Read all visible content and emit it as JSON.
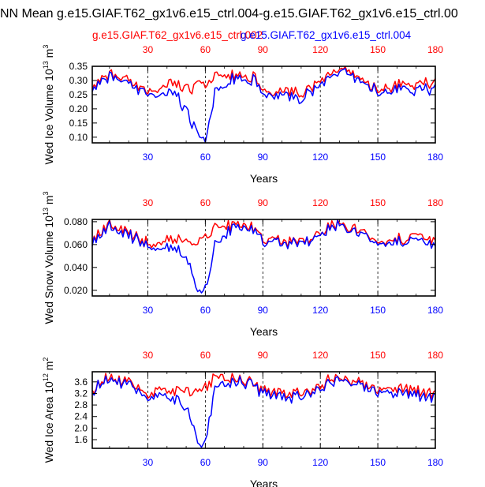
{
  "title": "NN Mean g.e15.GIAF.T62_gx1v6.e15_ctrl.004-g.e15.GIAF.T62_gx1v6.e15_ctrl.00",
  "legend": {
    "series_a": "g.e15.GIAF.T62_gx1v6.e15_ctrl.002",
    "series_b": "g.e15.GIAF.T62_gx1v6.e15_ctrl.004"
  },
  "colors": {
    "series_a": "#ff0000",
    "series_b": "#0000ff",
    "axis": "#000000",
    "grid": "#000000"
  },
  "chart_data": [
    {
      "type": "line",
      "ylabel": "Wed Ice Volume",
      "ylabel_exp": "13",
      "ylabel_unit": "m",
      "ylabel_unit_exp": "3",
      "xlabel": "Years",
      "xlim": [
        1,
        180
      ],
      "ylim": [
        0.08,
        0.35
      ],
      "yticks": [
        "0.10",
        "0.15",
        "0.20",
        "0.25",
        "0.30",
        "0.35"
      ],
      "ytick_values": [
        0.1,
        0.15,
        0.2,
        0.25,
        0.3,
        0.35
      ],
      "xticks_bottom": [
        "30",
        "60",
        "90",
        "120",
        "150",
        "180"
      ],
      "xticks_top": [
        "30",
        "60",
        "90",
        "120",
        "150",
        "180"
      ],
      "vgrid_at": [
        30,
        60,
        90,
        120,
        150
      ],
      "key_points": [
        {
          "x": 1,
          "a": 0.275,
          "b": 0.27
        },
        {
          "x": 10,
          "a": 0.325,
          "b": 0.315
        },
        {
          "x": 30,
          "a": 0.26,
          "b": 0.25
        },
        {
          "x": 45,
          "a": 0.29,
          "b": 0.25
        },
        {
          "x": 52,
          "a": 0.27,
          "b": 0.17
        },
        {
          "x": 57,
          "a": 0.28,
          "b": 0.085
        },
        {
          "x": 60,
          "a": 0.29,
          "b": 0.095
        },
        {
          "x": 65,
          "a": 0.32,
          "b": 0.26
        },
        {
          "x": 75,
          "a": 0.32,
          "b": 0.31
        },
        {
          "x": 85,
          "a": 0.31,
          "b": 0.3
        },
        {
          "x": 90,
          "a": 0.27,
          "b": 0.26
        },
        {
          "x": 110,
          "a": 0.26,
          "b": 0.24
        },
        {
          "x": 130,
          "a": 0.34,
          "b": 0.33
        },
        {
          "x": 150,
          "a": 0.27,
          "b": 0.26
        },
        {
          "x": 165,
          "a": 0.29,
          "b": 0.27
        },
        {
          "x": 180,
          "a": 0.29,
          "b": 0.27
        }
      ]
    },
    {
      "type": "line",
      "ylabel": "Wed Snow Volume",
      "ylabel_exp": "13",
      "ylabel_unit": "m",
      "ylabel_unit_exp": "3",
      "xlabel": "Years",
      "xlim": [
        1,
        180
      ],
      "ylim": [
        0.015,
        0.082
      ],
      "yticks": [
        "0.020",
        "0.040",
        "0.060",
        "0.080"
      ],
      "ytick_values": [
        0.02,
        0.04,
        0.06,
        0.08
      ],
      "xticks_bottom": [
        "30",
        "60",
        "90",
        "120",
        "150",
        "180"
      ],
      "xticks_top": [
        "30",
        "60",
        "90",
        "120",
        "150",
        "180"
      ],
      "vgrid_at": [
        30,
        60,
        90,
        120,
        150
      ],
      "key_points": [
        {
          "x": 1,
          "a": 0.063,
          "b": 0.061
        },
        {
          "x": 10,
          "a": 0.078,
          "b": 0.076
        },
        {
          "x": 30,
          "a": 0.062,
          "b": 0.06
        },
        {
          "x": 45,
          "a": 0.066,
          "b": 0.057
        },
        {
          "x": 52,
          "a": 0.062,
          "b": 0.042
        },
        {
          "x": 57,
          "a": 0.063,
          "b": 0.016
        },
        {
          "x": 60,
          "a": 0.066,
          "b": 0.02
        },
        {
          "x": 65,
          "a": 0.076,
          "b": 0.06
        },
        {
          "x": 75,
          "a": 0.077,
          "b": 0.075
        },
        {
          "x": 85,
          "a": 0.074,
          "b": 0.072
        },
        {
          "x": 90,
          "a": 0.064,
          "b": 0.062
        },
        {
          "x": 110,
          "a": 0.062,
          "b": 0.06
        },
        {
          "x": 130,
          "a": 0.08,
          "b": 0.078
        },
        {
          "x": 150,
          "a": 0.063,
          "b": 0.061
        },
        {
          "x": 165,
          "a": 0.066,
          "b": 0.063
        },
        {
          "x": 180,
          "a": 0.063,
          "b": 0.058
        }
      ]
    },
    {
      "type": "line",
      "ylabel": "Wed Ice Area",
      "ylabel_exp": "12",
      "ylabel_unit": "m",
      "ylabel_unit_exp": "2",
      "xlabel": "Years",
      "xlim": [
        1,
        180
      ],
      "ylim": [
        1.3,
        3.95
      ],
      "yticks": [
        "1.6",
        "2.0",
        "2.4",
        "2.8",
        "3.2",
        "3.6"
      ],
      "ytick_values": [
        1.6,
        2.0,
        2.4,
        2.8,
        3.2,
        3.6
      ],
      "xticks_bottom": [
        "30",
        "60",
        "90",
        "120",
        "150",
        "180"
      ],
      "xticks_top": [
        "30",
        "60",
        "90",
        "120",
        "150",
        "180"
      ],
      "vgrid_at": [
        30,
        60,
        90,
        120,
        150
      ],
      "key_points": [
        {
          "x": 1,
          "a": 3.35,
          "b": 3.3
        },
        {
          "x": 10,
          "a": 3.8,
          "b": 3.75
        },
        {
          "x": 30,
          "a": 3.25,
          "b": 3.1
        },
        {
          "x": 45,
          "a": 3.3,
          "b": 3.0
        },
        {
          "x": 52,
          "a": 3.25,
          "b": 2.4
        },
        {
          "x": 57,
          "a": 3.3,
          "b": 1.35
        },
        {
          "x": 60,
          "a": 3.4,
          "b": 1.5
        },
        {
          "x": 65,
          "a": 3.7,
          "b": 3.3
        },
        {
          "x": 75,
          "a": 3.7,
          "b": 3.65
        },
        {
          "x": 85,
          "a": 3.55,
          "b": 3.5
        },
        {
          "x": 90,
          "a": 3.3,
          "b": 3.2
        },
        {
          "x": 110,
          "a": 3.2,
          "b": 3.05
        },
        {
          "x": 130,
          "a": 3.8,
          "b": 3.75
        },
        {
          "x": 150,
          "a": 3.3,
          "b": 3.2
        },
        {
          "x": 165,
          "a": 3.4,
          "b": 3.2
        },
        {
          "x": 180,
          "a": 3.15,
          "b": 3.05
        }
      ]
    }
  ]
}
